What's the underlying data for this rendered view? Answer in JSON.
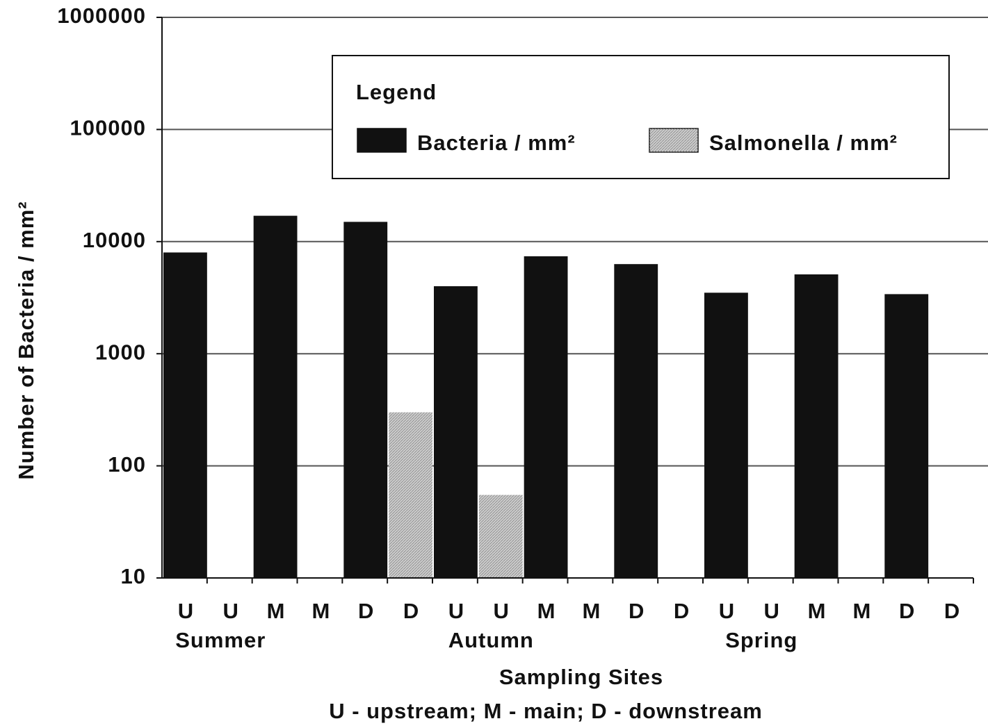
{
  "chart_data": {
    "type": "bar",
    "ylabel": "Number of Bacteria / mm²",
    "xlabel": "Sampling Sites",
    "note": "U - upstream; M - main;  D - downstream",
    "legend_title": "Legend",
    "legend": "top-right",
    "log_scale": true,
    "grid": true,
    "categories": [
      "U",
      "U",
      "M",
      "M",
      "D",
      "D",
      "U",
      "U",
      "M",
      "M",
      "D",
      "D",
      "U",
      "U",
      "M",
      "M",
      "D",
      "D"
    ],
    "groups": [
      "Summer",
      "Autumn",
      "Spring"
    ],
    "series": [
      {
        "name": "Bacteria / mm²",
        "color": "#111111",
        "values": [
          8000,
          null,
          17000,
          null,
          15000,
          null,
          4000,
          null,
          7400,
          null,
          6300,
          null,
          3500,
          null,
          5100,
          null,
          3400,
          null
        ]
      },
      {
        "name": "Salmonella / mm²",
        "color": "#cccccc",
        "values": [
          null,
          null,
          null,
          null,
          null,
          300,
          null,
          55,
          null,
          null,
          null,
          null,
          null,
          null,
          null,
          null,
          null,
          null
        ]
      }
    ],
    "ylim": [
      10,
      1000000
    ],
    "yticks": [
      10,
      100,
      1000,
      10000,
      100000,
      1000000
    ]
  }
}
